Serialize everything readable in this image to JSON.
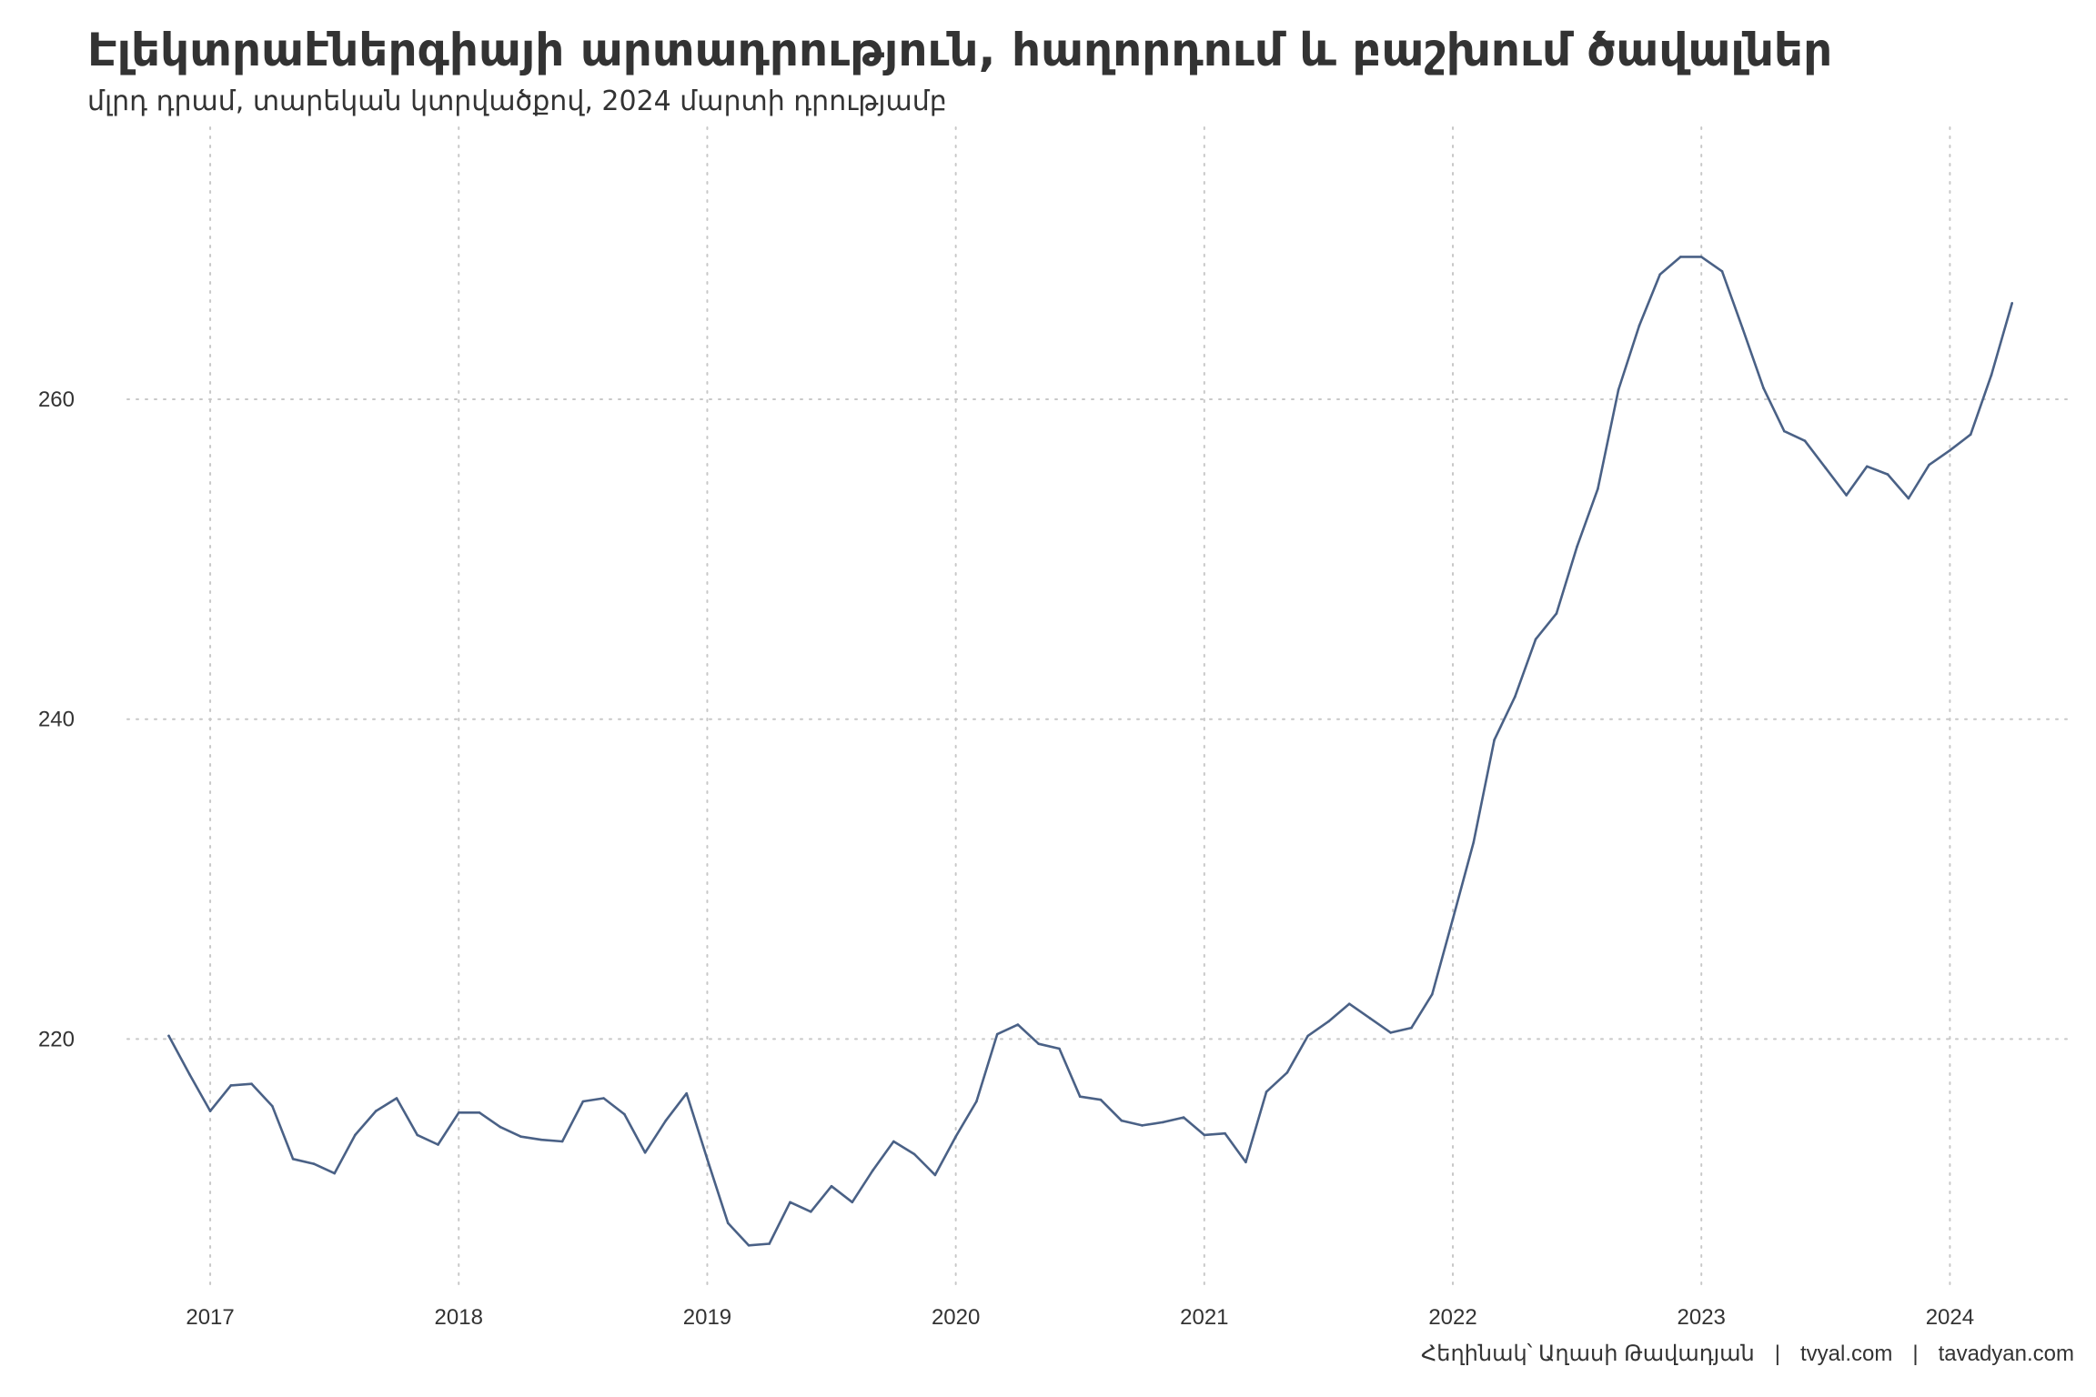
{
  "title": "Էլեկտրաէներգիայի արտադրություն, հաղորդում և բաշխում ծավալներ",
  "subtitle": "մլրդ դրամ, տարեկան կտրվածքով, 2024 մարտի դրությամբ",
  "caption": {
    "author": "Հեղինակ՝ Աղասի Թավադյան",
    "site1": "tvyal.com",
    "site2": "tavadyan.com",
    "separator": "|"
  },
  "colors": {
    "line": "#4a6186",
    "grid": "#c8c8c8",
    "text": "#333333"
  },
  "chart_data": {
    "type": "line",
    "title": "Էլեկտրաէներգիայի արտադրություն, հաղորդում և բաշխում ծավալներ",
    "subtitle": "մլրդ դրամ, տարեկան կտրվածքով, 2024 մարտի դրությամբ",
    "xlabel": "",
    "ylabel": "",
    "x_ticks": [
      "2017",
      "2018",
      "2019",
      "2020",
      "2021",
      "2022",
      "2023",
      "2024"
    ],
    "y_ticks": [
      220,
      240,
      260
    ],
    "xlim": [
      "2016-09",
      "2024-07"
    ],
    "ylim": [
      204.5,
      277
    ],
    "grid": true,
    "legend": "none",
    "series": [
      {
        "dates": [
          "2016-11",
          "2016-12",
          "2017-01",
          "2017-02",
          "2017-03",
          "2017-04",
          "2017-05",
          "2017-06",
          "2017-07",
          "2017-08",
          "2017-09",
          "2017-10",
          "2017-11",
          "2017-12",
          "2018-01",
          "2018-02",
          "2018-03",
          "2018-04",
          "2018-05",
          "2018-06",
          "2018-07",
          "2018-08",
          "2018-09",
          "2018-10",
          "2018-11",
          "2018-12",
          "2019-01",
          "2019-02",
          "2019-03",
          "2019-04",
          "2019-05",
          "2019-06",
          "2019-07",
          "2019-08",
          "2019-09",
          "2019-10",
          "2019-11",
          "2019-12",
          "2020-01",
          "2020-02",
          "2020-03",
          "2020-04",
          "2020-05",
          "2020-06",
          "2020-07",
          "2020-08",
          "2020-09",
          "2020-10",
          "2020-11",
          "2020-12",
          "2021-01",
          "2021-02",
          "2021-03",
          "2021-04",
          "2021-05",
          "2021-06",
          "2021-07",
          "2021-08",
          "2021-09",
          "2021-10",
          "2021-11",
          "2021-12",
          "2022-01",
          "2022-02",
          "2022-03",
          "2022-04",
          "2022-05",
          "2022-06",
          "2022-07",
          "2022-08",
          "2022-09",
          "2022-10",
          "2022-11",
          "2022-12",
          "2023-01",
          "2023-02",
          "2023-03",
          "2023-04",
          "2023-05",
          "2023-06",
          "2023-07",
          "2023-08",
          "2023-09",
          "2023-10",
          "2023-11",
          "2023-12",
          "2024-01",
          "2024-02",
          "2024-03",
          "2024-04"
        ],
        "values": [
          220.2,
          217.8,
          215.5,
          217.1,
          217.2,
          215.8,
          212.5,
          212.2,
          211.6,
          214.0,
          215.5,
          216.3,
          214.0,
          213.4,
          215.4,
          215.4,
          214.5,
          213.9,
          213.7,
          213.6,
          216.1,
          216.3,
          215.3,
          212.9,
          214.9,
          216.6,
          212.5,
          208.5,
          207.1,
          207.2,
          209.8,
          209.2,
          210.8,
          209.8,
          211.8,
          213.6,
          212.8,
          211.5,
          213.9,
          216.1,
          220.3,
          220.9,
          219.7,
          219.4,
          216.4,
          216.2,
          214.9,
          214.6,
          214.8,
          215.1,
          214.0,
          214.1,
          212.3,
          216.7,
          217.9,
          220.2,
          221.1,
          222.2,
          221.3,
          220.4,
          220.7,
          222.8,
          227.5,
          232.3,
          238.7,
          241.4,
          245.0,
          246.6,
          250.8,
          254.4,
          260.6,
          264.6,
          267.8,
          268.9,
          268.9,
          268.0,
          264.4,
          260.7,
          258.0,
          257.4,
          255.7,
          254.0,
          255.8,
          255.3,
          253.8,
          255.9,
          256.8,
          257.8,
          261.5,
          266.0
        ]
      }
    ]
  }
}
